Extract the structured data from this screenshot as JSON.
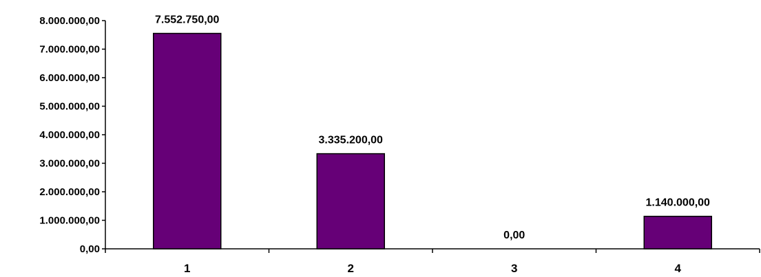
{
  "chart_data": {
    "type": "bar",
    "title": "",
    "xlabel": "",
    "ylabel": "",
    "categories": [
      "1",
      "2",
      "3",
      "4"
    ],
    "values": [
      7552750,
      3335200,
      0,
      1140000
    ],
    "data_labels": [
      "7.552.750,00",
      "3.335.200,00",
      "0,00",
      "1.140.000,00"
    ],
    "ylim": [
      0,
      8000000
    ],
    "y_ticks": [
      0,
      1000000,
      2000000,
      3000000,
      4000000,
      5000000,
      6000000,
      7000000,
      8000000
    ],
    "y_tick_labels": [
      "0,00",
      "1.000.000,00",
      "2.000.000,00",
      "3.000.000,00",
      "4.000.000,00",
      "5.000.000,00",
      "6.000.000,00",
      "7.000.000,00",
      "8.000.000,00"
    ],
    "grid": false,
    "legend": "none",
    "colors": {
      "bar_fill": "#660077",
      "bar_stroke": "#000000",
      "axis": "#000000"
    }
  }
}
